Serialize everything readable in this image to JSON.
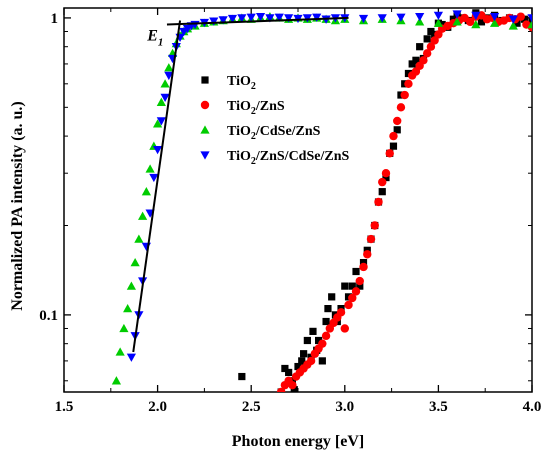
{
  "chart_data": {
    "type": "scatter",
    "xlabel": "Photon energy [eV]",
    "ylabel": "Normalized PA intensity (a. u.)",
    "xlim": [
      1.5,
      4.0
    ],
    "ylim": [
      0.055,
      1.08
    ],
    "yscale": "log",
    "xticks": [
      {
        "value": 1.5,
        "label": "1.5"
      },
      {
        "value": 2.0,
        "label": "2.0"
      },
      {
        "value": 2.5,
        "label": "2.5"
      },
      {
        "value": 3.0,
        "label": "3.0"
      },
      {
        "value": 3.5,
        "label": "3.5"
      },
      {
        "value": 4.0,
        "label": "4.0"
      }
    ],
    "yticks": [
      {
        "value": 0.1,
        "label": "0.1"
      },
      {
        "value": 1.0,
        "label": "1"
      }
    ],
    "grid": false,
    "legend_position": "right",
    "series": [
      {
        "name": "TiO2",
        "legend_main": "TiO",
        "legend_sub": "2",
        "legend_rest": "",
        "marker": "square",
        "color": "#000000",
        "x": [
          2.45,
          2.66,
          2.68,
          2.7,
          2.72,
          2.73,
          2.75,
          2.77,
          2.78,
          2.8,
          2.82,
          2.83,
          2.85,
          2.86,
          2.88,
          2.9,
          2.91,
          2.93,
          2.95,
          2.96,
          2.98,
          3.0,
          3.02,
          3.04,
          3.06,
          3.08,
          3.1,
          3.12,
          3.14,
          3.16,
          3.18,
          3.2,
          3.22,
          3.24,
          3.26,
          3.28,
          3.3,
          3.32,
          3.34,
          3.36,
          3.38,
          3.4,
          3.42,
          3.44,
          3.46,
          3.48,
          3.5,
          3.52,
          3.55,
          3.58,
          3.6,
          3.63,
          3.66,
          3.7,
          3.73,
          3.76,
          3.8,
          3.84,
          3.88,
          3.92,
          3.96,
          4.0
        ],
        "y": [
          0.062,
          0.055,
          0.066,
          0.064,
          0.06,
          0.056,
          0.067,
          0.07,
          0.074,
          0.082,
          0.072,
          0.088,
          0.076,
          0.082,
          0.07,
          0.095,
          0.105,
          0.115,
          0.1,
          0.095,
          0.105,
          0.125,
          0.115,
          0.125,
          0.14,
          0.125,
          0.15,
          0.165,
          0.18,
          0.2,
          0.24,
          0.26,
          0.29,
          0.35,
          0.37,
          0.42,
          0.55,
          0.6,
          0.65,
          0.7,
          0.72,
          0.8,
          0.73,
          0.85,
          0.9,
          0.88,
          0.96,
          0.95,
          0.93,
          0.99,
          1.02,
          1.0,
          0.98,
          1.04,
          0.97,
          1.0,
          1.02,
          0.98,
          1.0,
          0.96,
          0.99,
          0.98
        ]
      },
      {
        "name": "TiO2/ZnS",
        "legend_main": "TiO",
        "legend_sub": "2",
        "legend_rest": "/ZnS",
        "marker": "circle",
        "color": "#ff0000",
        "x": [
          2.66,
          2.68,
          2.7,
          2.72,
          2.74,
          2.76,
          2.78,
          2.8,
          2.82,
          2.84,
          2.86,
          2.88,
          2.9,
          2.92,
          2.94,
          2.96,
          2.98,
          3.0,
          3.02,
          3.04,
          3.06,
          3.08,
          3.1,
          3.12,
          3.14,
          3.16,
          3.18,
          3.2,
          3.22,
          3.24,
          3.26,
          3.28,
          3.3,
          3.32,
          3.34,
          3.36,
          3.38,
          3.4,
          3.42,
          3.44,
          3.46,
          3.48,
          3.5,
          3.52,
          3.55,
          3.58,
          3.61,
          3.64,
          3.67,
          3.7,
          3.73,
          3.76,
          3.79,
          3.82,
          3.85,
          3.88,
          3.91,
          3.94,
          3.97,
          4.0
        ],
        "y": [
          0.055,
          0.058,
          0.06,
          0.058,
          0.062,
          0.064,
          0.066,
          0.068,
          0.07,
          0.074,
          0.077,
          0.08,
          0.085,
          0.09,
          0.094,
          0.098,
          0.102,
          0.09,
          0.108,
          0.114,
          0.12,
          0.13,
          0.145,
          0.16,
          0.18,
          0.2,
          0.24,
          0.28,
          0.3,
          0.35,
          0.4,
          0.45,
          0.5,
          0.55,
          0.6,
          0.64,
          0.66,
          0.69,
          0.72,
          0.76,
          0.8,
          0.84,
          0.88,
          0.92,
          0.94,
          0.96,
          0.98,
          1.0,
          0.97,
          1.01,
          1.02,
          0.99,
          1.0,
          0.97,
          0.98,
          1.0,
          0.99,
          1.01,
          0.95,
          0.93
        ]
      },
      {
        "name": "TiO2/CdSe/ZnS",
        "legend_main": "TiO",
        "legend_sub": "2",
        "legend_rest": "/CdSe/ZnS",
        "marker": "triangle-up",
        "color": "#00cc00",
        "x": [
          1.78,
          1.8,
          1.82,
          1.84,
          1.86,
          1.88,
          1.9,
          1.92,
          1.94,
          1.96,
          1.98,
          2.0,
          2.02,
          2.04,
          2.06,
          2.08,
          2.1,
          2.12,
          2.14,
          2.16,
          2.2,
          2.25,
          2.3,
          2.35,
          2.4,
          2.45,
          2.5,
          2.55,
          2.6,
          2.65,
          2.7,
          2.75,
          2.8,
          2.85,
          2.9,
          2.95,
          3.0,
          3.1,
          3.2,
          3.3,
          3.4,
          3.5,
          3.6,
          3.7,
          3.8,
          3.9,
          4.0
        ],
        "y": [
          0.06,
          0.075,
          0.09,
          0.105,
          0.125,
          0.15,
          0.18,
          0.215,
          0.26,
          0.31,
          0.37,
          0.44,
          0.52,
          0.6,
          0.68,
          0.76,
          0.82,
          0.87,
          0.9,
          0.92,
          0.94,
          0.96,
          0.97,
          0.98,
          0.99,
          1.0,
          0.99,
          1.0,
          1.01,
          1.0,
          0.99,
          1.0,
          0.99,
          1.0,
          0.99,
          0.98,
          0.99,
          0.98,
          0.99,
          0.98,
          0.97,
          0.96,
          0.97,
          0.95,
          0.96,
          0.94,
          0.95
        ]
      },
      {
        "name": "TiO2/ZnS/CdSe/ZnS",
        "legend_main": "TiO",
        "legend_sub": "2",
        "legend_rest": "/ZnS/CdSe/ZnS",
        "marker": "triangle-down",
        "color": "#0000ff",
        "x": [
          1.84,
          1.86,
          1.88,
          1.9,
          1.92,
          1.94,
          1.96,
          1.98,
          2.0,
          2.02,
          2.04,
          2.06,
          2.08,
          2.1,
          2.12,
          2.14,
          2.16,
          2.18,
          2.2,
          2.25,
          2.3,
          2.35,
          2.4,
          2.45,
          2.5,
          2.55,
          2.6,
          2.65,
          2.7,
          2.75,
          2.8,
          2.85,
          2.9,
          2.95,
          3.0,
          3.1,
          3.2,
          3.3,
          3.4,
          3.5,
          3.6,
          3.7,
          3.8,
          3.9,
          4.0
        ],
        "y": [
          0.052,
          0.072,
          0.085,
          0.1,
          0.13,
          0.17,
          0.22,
          0.29,
          0.36,
          0.45,
          0.54,
          0.64,
          0.73,
          0.8,
          0.86,
          0.9,
          0.92,
          0.94,
          0.95,
          0.965,
          0.975,
          0.985,
          0.995,
          1.0,
          1.005,
          1.01,
          1.0,
          1.005,
          1.0,
          0.995,
          1.0,
          1.005,
          0.99,
          1.0,
          1.0,
          0.995,
          1.0,
          1.005,
          1.01,
          1.02,
          1.03,
          1.02,
          1.01,
          0.99,
          1.0
        ]
      }
    ],
    "fit_lines": [
      {
        "x": [
          1.87,
          2.12
        ],
        "y": [
          0.075,
          0.98
        ]
      },
      {
        "x": [
          2.05,
          3.02
        ],
        "y": [
          0.95,
          1.0
        ]
      }
    ],
    "annotations": [
      {
        "label_main": "E",
        "label_sub": "1",
        "x": 2.03,
        "y": 0.8
      }
    ]
  }
}
